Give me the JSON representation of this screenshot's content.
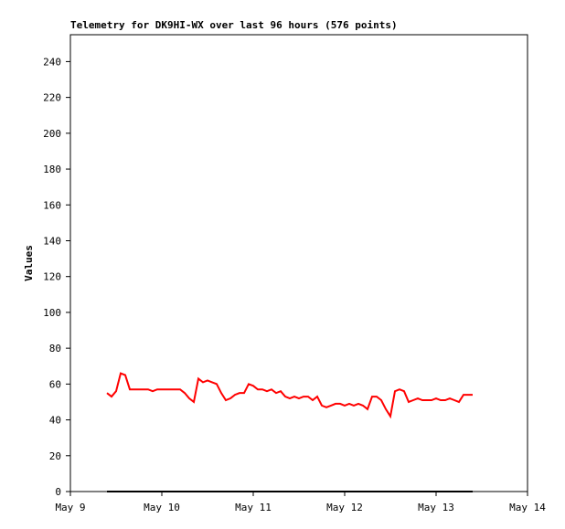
{
  "chart_data": {
    "type": "line",
    "title": "Telemetry for DK9HI-WX over last 96 hours (576 points)",
    "y_label": "Values",
    "xlim": [
      9,
      14
    ],
    "xticks": [
      {
        "value": 9,
        "label": "May 9"
      },
      {
        "value": 10,
        "label": "May 10"
      },
      {
        "value": 11,
        "label": "May 11"
      },
      {
        "value": 12,
        "label": "May 12"
      },
      {
        "value": 13,
        "label": "May 13"
      },
      {
        "value": 14,
        "label": "May 14"
      }
    ],
    "ylim": [
      0,
      255
    ],
    "yticks": [
      0,
      20,
      40,
      60,
      80,
      100,
      120,
      140,
      160,
      180,
      200,
      220,
      240
    ],
    "series": [
      {
        "color": "#ff0000",
        "x": [
          9.4,
          9.45,
          9.5,
          9.55,
          9.6,
          9.65,
          9.7,
          9.75,
          9.8,
          9.85,
          9.9,
          9.95,
          10,
          10.05,
          10.1,
          10.15,
          10.2,
          10.25,
          10.3,
          10.35,
          10.4,
          10.45,
          10.5,
          10.55,
          10.6,
          10.65,
          10.7,
          10.75,
          10.8,
          10.85,
          10.9,
          10.95,
          11,
          11.05,
          11.1,
          11.15,
          11.2,
          11.25,
          11.3,
          11.35,
          11.4,
          11.45,
          11.5,
          11.55,
          11.6,
          11.65,
          11.7,
          11.75,
          11.8,
          11.85,
          11.9,
          11.95,
          12,
          12.05,
          12.1,
          12.15,
          12.2,
          12.25,
          12.3,
          12.35,
          12.4,
          12.45,
          12.5,
          12.55,
          12.6,
          12.65,
          12.7,
          12.75,
          12.8,
          12.85,
          12.9,
          12.95,
          13,
          13.05,
          13.1,
          13.15,
          13.2,
          13.25,
          13.3,
          13.35,
          13.4
        ],
        "values": [
          55,
          53,
          56,
          66,
          65,
          57,
          57,
          57,
          57,
          57,
          56,
          57,
          57,
          57,
          57,
          57,
          57,
          55,
          52,
          50,
          63,
          61,
          62,
          61,
          60,
          55,
          51,
          52,
          54,
          55,
          55,
          60,
          59,
          57,
          57,
          56,
          57,
          55,
          56,
          53,
          52,
          53,
          52,
          53,
          53,
          51,
          53,
          48,
          47,
          48,
          49,
          49,
          48,
          49,
          48,
          49,
          48,
          46,
          53,
          53,
          51,
          46,
          42,
          56,
          57,
          56,
          50,
          51,
          52,
          51,
          51,
          51,
          52,
          51,
          51,
          52,
          51,
          50,
          54,
          54,
          54
        ]
      },
      {
        "color": "#000000",
        "x": [
          9.4,
          13.4
        ],
        "values": [
          0,
          0
        ]
      }
    ]
  }
}
